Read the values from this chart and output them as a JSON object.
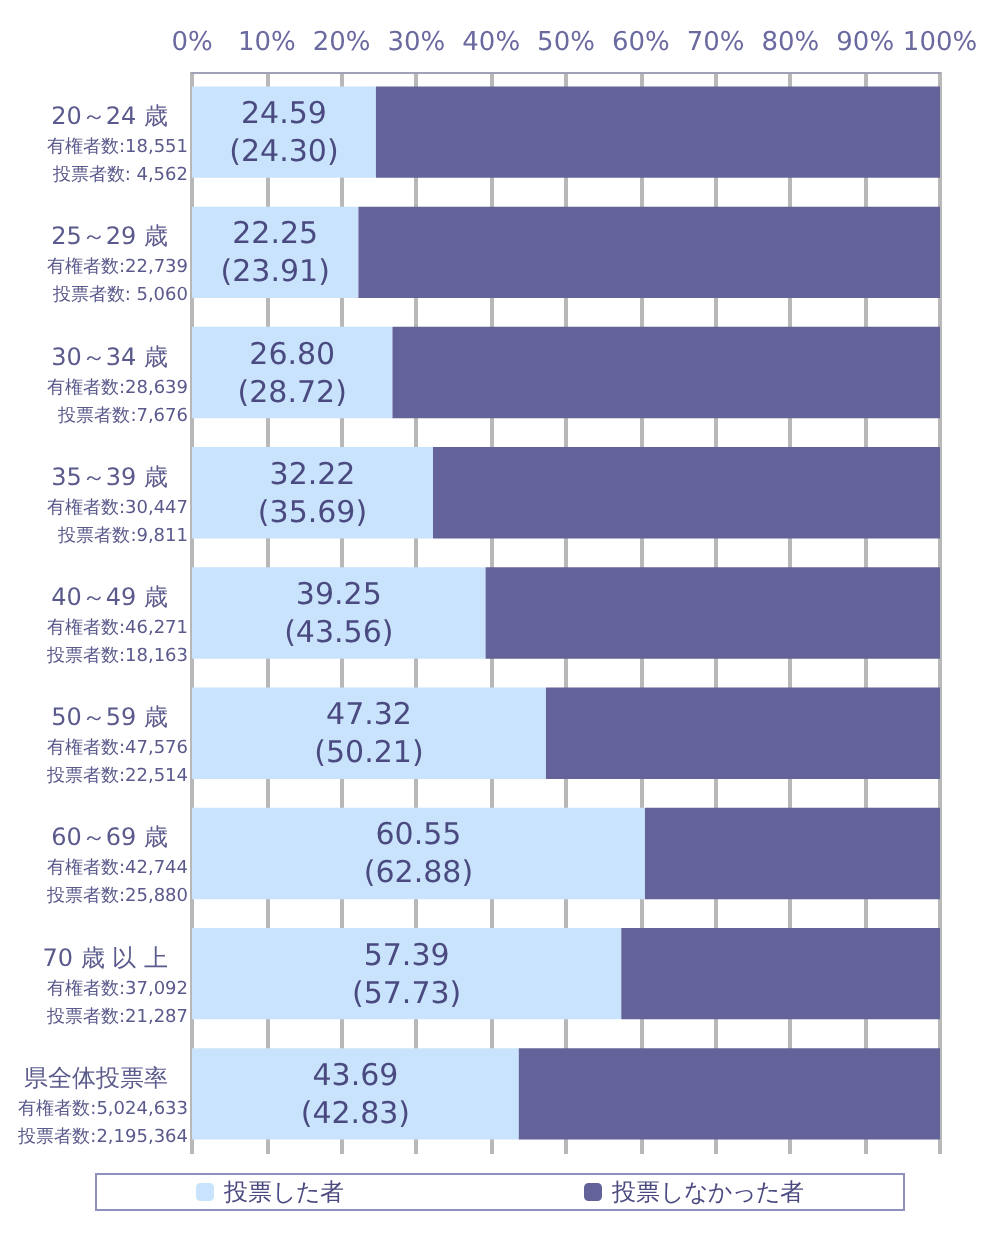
{
  "chart_data": {
    "type": "bar",
    "orientation": "horizontal",
    "stacked": true,
    "categories": [
      "20～24 歳",
      "25～29 歳",
      "30～34 歳",
      "35～39 歳",
      "40～49 歳",
      "50～59 歳",
      "60～69 歳",
      "70 歳 以 上",
      "県全体投票率"
    ],
    "annotations": [
      "有権者数:18,551",
      "投票者数: 4,562",
      "有権者数:22,739",
      "投票者数: 5,060",
      "有権者数:28,639",
      "投票者数:7,676",
      "有権者数:30,447",
      "投票者数:9,811",
      "有権者数:46,271",
      "投票者数:18,163",
      "有権者数:47,576",
      "投票者数:22,514",
      "有権者数:42,744",
      "投票者数:25,880",
      "有権者数:37,092",
      "投票者数:21,287",
      "有権者数:5,024,633",
      "投票者数:2,195,364"
    ],
    "series": [
      {
        "name": "投票した者",
        "color": "#c8e3fb",
        "values": [
          24.59,
          22.25,
          26.8,
          32.22,
          39.25,
          47.32,
          60.55,
          57.39,
          43.69
        ],
        "value_labels": [
          "24.59\n(24.30)",
          "22.25\n(23.91)",
          "26.80\n(28.72)",
          "32.22\n(35.69)",
          "39.25\n(43.56)",
          "47.32\n(50.21)",
          "60.55\n(62.88)",
          "57.39\n(57.73)",
          "43.69\n(42.83)"
        ]
      },
      {
        "name": "投票しなかった者",
        "color": "#636399",
        "values": [
          75.41,
          77.75,
          73.2,
          67.78,
          60.75,
          52.68,
          39.45,
          42.61,
          56.31
        ]
      }
    ],
    "xlim": [
      0,
      100
    ],
    "xticks": [
      {
        "value": 0,
        "label": "0%"
      },
      {
        "value": 10,
        "label": "10%"
      },
      {
        "value": 20,
        "label": "20%"
      },
      {
        "value": 30,
        "label": "30%"
      },
      {
        "value": 40,
        "label": "40%"
      },
      {
        "value": 50,
        "label": "50%"
      },
      {
        "value": 60,
        "label": "60%"
      },
      {
        "value": 70,
        "label": "70%"
      },
      {
        "value": 80,
        "label": "80%"
      },
      {
        "value": 90,
        "label": "90%"
      },
      {
        "value": 100,
        "label": "100%"
      }
    ],
    "grid": "x",
    "legend": "bottom"
  }
}
